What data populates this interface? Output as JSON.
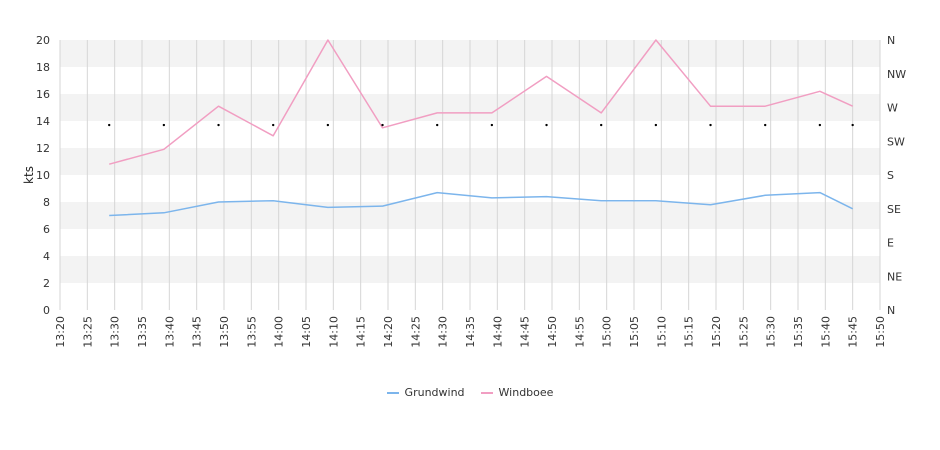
{
  "chart_data": {
    "type": "line",
    "ylabel": "kts",
    "ylim": [
      0,
      20
    ],
    "y_ticks": [
      "0",
      "2",
      "4",
      "6",
      "8",
      "10",
      "12",
      "14",
      "16",
      "18",
      "20"
    ],
    "direction_axis": {
      "position": "right",
      "labels": [
        "N",
        "NE",
        "E",
        "SE",
        "S",
        "SW",
        "W",
        "NW",
        "N"
      ]
    },
    "x_ticks": [
      "13:20",
      "13:25",
      "13:30",
      "13:35",
      "13:40",
      "13:45",
      "13:50",
      "13:55",
      "14:00",
      "14:05",
      "14:10",
      "14:15",
      "14:20",
      "14:25",
      "14:30",
      "14:35",
      "14:40",
      "14:45",
      "14:50",
      "14:55",
      "15:00",
      "15:05",
      "15:10",
      "15:15",
      "15:20",
      "15:25",
      "15:30",
      "15:35",
      "15:40",
      "15:45",
      "15:50"
    ],
    "xlim": [
      "13:20",
      "15:50"
    ],
    "grid": true,
    "legend_placement": "bottom-center",
    "series": [
      {
        "name": "Grundwind",
        "color": "#7cb5ec",
        "x": [
          "13:29",
          "13:39",
          "13:49",
          "13:59",
          "14:09",
          "14:19",
          "14:29",
          "14:39",
          "14:49",
          "14:59",
          "15:09",
          "15:19",
          "15:29",
          "15:39",
          "15:45"
        ],
        "values": [
          7.0,
          7.2,
          8.0,
          8.1,
          7.6,
          7.7,
          8.7,
          8.3,
          8.4,
          8.1,
          8.1,
          7.8,
          8.5,
          8.7,
          7.5
        ]
      },
      {
        "name": "Windboee",
        "color": "#f19ec2",
        "x": [
          "13:29",
          "13:39",
          "13:49",
          "13:59",
          "14:09",
          "14:19",
          "14:29",
          "14:39",
          "14:49",
          "14:59",
          "15:09",
          "15:19",
          "15:29",
          "15:39",
          "15:45"
        ],
        "values": [
          10.8,
          11.9,
          15.1,
          12.9,
          20.0,
          13.5,
          14.6,
          14.6,
          17.3,
          14.6,
          20.0,
          15.1,
          15.1,
          16.2,
          15.1
        ]
      }
    ],
    "direction_markers": {
      "x": [
        "13:29",
        "13:39",
        "13:49",
        "13:59",
        "14:09",
        "14:19",
        "14:29",
        "14:39",
        "14:49",
        "14:59",
        "15:09",
        "15:19",
        "15:29",
        "15:39",
        "15:45"
      ],
      "values": [
        13.7,
        13.7,
        13.7,
        13.7,
        13.7,
        13.7,
        13.7,
        13.7,
        13.7,
        13.7,
        13.7,
        13.7,
        13.7,
        13.7,
        13.7
      ]
    }
  }
}
